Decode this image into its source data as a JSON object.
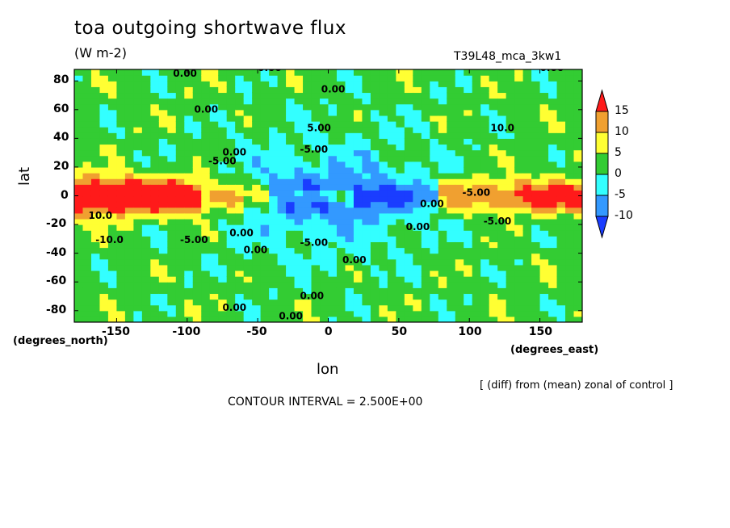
{
  "chart_data": {
    "type": "heatmap",
    "title": "toa outgoing shortwave flux",
    "units": "(W m-2)",
    "run_id": "T39L48_mca_3kw1",
    "xlabel": "lon",
    "ylabel": "lat",
    "x_unit_label": "(degrees_east)",
    "y_unit_label": "(degrees_north)",
    "xlim": [
      -180,
      180
    ],
    "ylim": [
      -88,
      88
    ],
    "x_ticks": [
      -150,
      -100,
      -50,
      0,
      50,
      100,
      150
    ],
    "y_ticks": [
      80,
      60,
      40,
      20,
      0,
      -20,
      -40,
      -60,
      -80
    ],
    "colorbar": {
      "levels": [
        15,
        10,
        5,
        0,
        -5,
        -10
      ],
      "colors": [
        "#ff1a1a",
        "#f0a030",
        "#ffff33",
        "#33cc33",
        "#33ffff",
        "#3399ff",
        "#1a3dff"
      ]
    },
    "contour_labels": [
      "0.00",
      "5.00",
      "-5.00",
      "10.0",
      "-10.0"
    ],
    "footnote": "[ (diff) from (mean) zonal of control ]",
    "contour_interval": "CONTOUR INTERVAL = 2.500E+00"
  }
}
